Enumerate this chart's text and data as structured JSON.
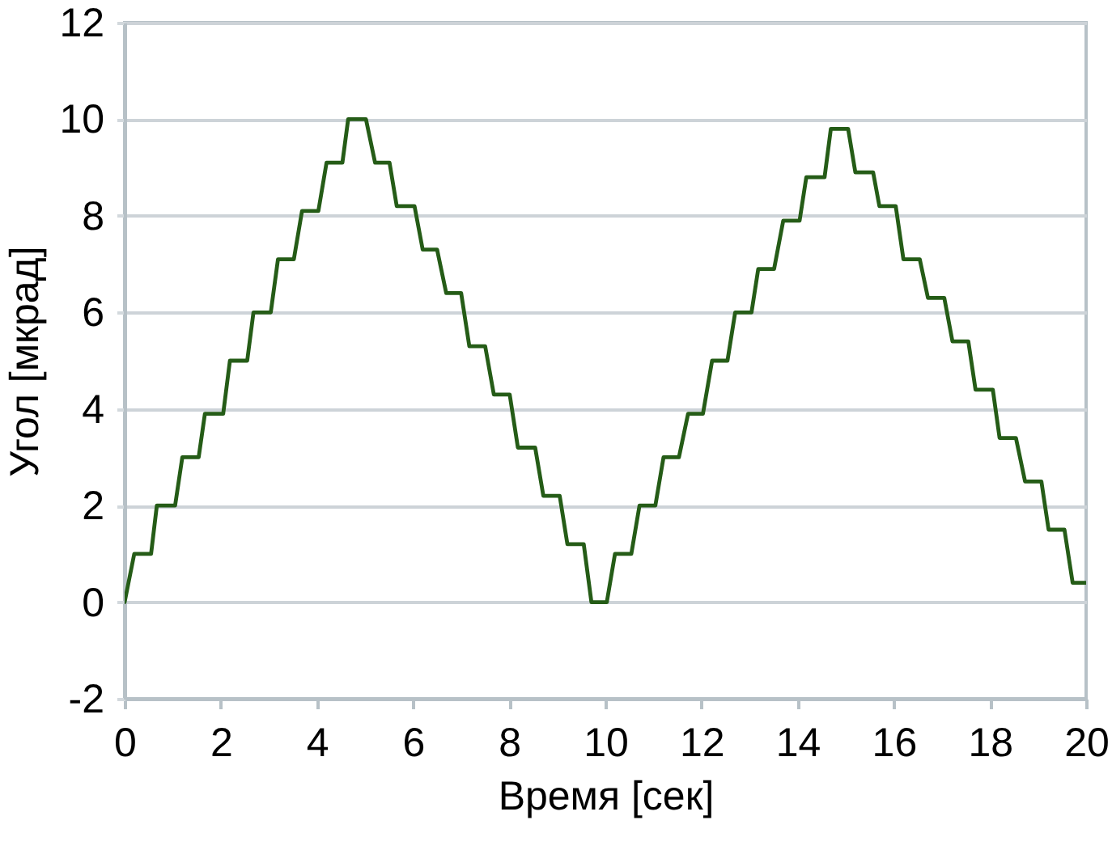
{
  "chart_data": {
    "type": "line",
    "xlabel": "Время [сек]",
    "ylabel": "Угол [мкрад]",
    "x": [
      0,
      0.2,
      0.55,
      0.67,
      1.05,
      1.2,
      1.54,
      1.67,
      2.05,
      2.19,
      2.55,
      2.68,
      3.04,
      3.19,
      3.52,
      3.69,
      4.03,
      4.2,
      4.53,
      4.65,
      5.02,
      5.21,
      5.51,
      5.66,
      6.03,
      6.2,
      6.5,
      6.69,
      7.0,
      7.17,
      7.5,
      7.68,
      8.01,
      8.18,
      8.54,
      8.71,
      9.05,
      9.21,
      9.55,
      9.71,
      10.03,
      10.2,
      10.54,
      10.71,
      11.04,
      11.21,
      11.53,
      11.72,
      12.03,
      12.22,
      12.54,
      12.7,
      13.04,
      13.18,
      13.51,
      13.7,
      14.04,
      14.18,
      14.56,
      14.69,
      15.05,
      15.2,
      15.57,
      15.7,
      16.04,
      16.2,
      16.54,
      16.71,
      17.05,
      17.22,
      17.55,
      17.7,
      18.06,
      18.2,
      18.54,
      18.73,
      19.07,
      19.22,
      19.55,
      19.72,
      20.0
    ],
    "series": [
      {
        "color": "#255c17",
        "values": [
          0,
          1.0,
          1.0,
          2.0,
          2.0,
          3.0,
          3.0,
          3.9,
          3.9,
          5.0,
          5.0,
          6.0,
          6.0,
          7.1,
          7.1,
          8.1,
          8.1,
          9.1,
          9.1,
          10.0,
          10.0,
          9.1,
          9.1,
          8.2,
          8.2,
          7.3,
          7.3,
          6.4,
          6.4,
          5.3,
          5.3,
          4.3,
          4.3,
          3.2,
          3.2,
          2.2,
          2.2,
          1.2,
          1.2,
          0.0,
          0.0,
          1.0,
          1.0,
          2.0,
          2.0,
          3.0,
          3.0,
          3.9,
          3.9,
          5.0,
          5.0,
          6.0,
          6.0,
          6.9,
          6.9,
          7.9,
          7.9,
          8.8,
          8.8,
          9.8,
          9.8,
          8.9,
          8.9,
          8.2,
          8.2,
          7.1,
          7.1,
          6.3,
          6.3,
          5.4,
          5.4,
          4.4,
          4.4,
          3.4,
          3.4,
          2.5,
          2.5,
          1.5,
          1.5,
          0.4,
          0.4
        ]
      }
    ],
    "xlim": [
      0,
      20
    ],
    "ylim": [
      -2,
      12
    ],
    "xticks": [
      0,
      2,
      4,
      6,
      8,
      10,
      12,
      14,
      16,
      18,
      20
    ],
    "yticks": [
      -2,
      0,
      2,
      4,
      6,
      8,
      10,
      12
    ],
    "grid": "y"
  }
}
